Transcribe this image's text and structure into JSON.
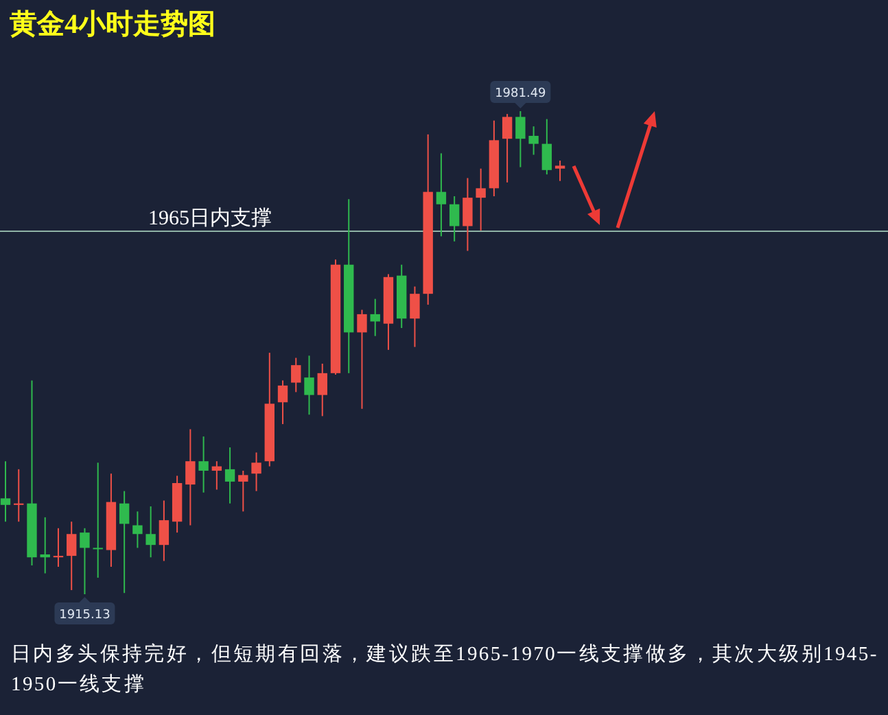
{
  "chart_data": {
    "type": "candlestick",
    "title": "黄金4小时走势图",
    "categories": [
      null,
      null,
      null,
      null,
      null,
      null,
      null,
      null,
      null,
      null,
      null,
      null,
      null,
      null,
      null,
      null,
      null,
      null,
      null,
      null,
      null,
      null,
      null,
      null,
      null,
      null,
      null,
      null,
      null,
      null,
      null,
      null,
      null,
      null,
      null,
      null,
      null,
      null,
      null,
      null,
      null,
      null,
      null
    ],
    "ohlc": [
      [
        1928.3,
        1933.4,
        1925.1,
        1927.4
      ],
      [
        1927.4,
        1932.3,
        1925.1,
        1927.6
      ],
      [
        1927.6,
        1944.5,
        1919.1,
        1920.2
      ],
      [
        1920.6,
        1925.7,
        1918.0,
        1920.2
      ],
      [
        1920.2,
        1924.2,
        1918.9,
        1920.4
      ],
      [
        1920.4,
        1925.1,
        1915.7,
        1923.4
      ],
      [
        1923.6,
        1924.2,
        1915.13,
        1921.5
      ],
      [
        1921.5,
        1933.2,
        1917.4,
        1921.4
      ],
      [
        1921.2,
        1931.7,
        1918.9,
        1927.8
      ],
      [
        1927.6,
        1929.3,
        1915.3,
        1924.8
      ],
      [
        1924.6,
        1926.5,
        1921.5,
        1923.4
      ],
      [
        1923.4,
        1927.2,
        1920.2,
        1921.9
      ],
      [
        1921.9,
        1928.0,
        1919.7,
        1925.3
      ],
      [
        1925.1,
        1931.4,
        1923.6,
        1930.4
      ],
      [
        1930.2,
        1937.8,
        1924.6,
        1933.4
      ],
      [
        1933.4,
        1936.8,
        1929.1,
        1932.1
      ],
      [
        1932.1,
        1933.4,
        1929.5,
        1932.7
      ],
      [
        1932.3,
        1935.3,
        1927.6,
        1930.6
      ],
      [
        1930.6,
        1932.1,
        1926.5,
        1931.5
      ],
      [
        1931.7,
        1934.6,
        1929.3,
        1933.2
      ],
      [
        1933.4,
        1948.3,
        1932.7,
        1941.3
      ],
      [
        1941.5,
        1944.5,
        1938.5,
        1943.8
      ],
      [
        1944.2,
        1947.6,
        1942.9,
        1946.6
      ],
      [
        1944.9,
        1947.9,
        1939.8,
        1942.5
      ],
      [
        1942.5,
        1946.8,
        1939.6,
        1945.5
      ],
      [
        1945.5,
        1961.1,
        1945.3,
        1960.4
      ],
      [
        1960.4,
        1969.4,
        1945.5,
        1951.1
      ],
      [
        1951.1,
        1954.2,
        1940.6,
        1953.6
      ],
      [
        1953.6,
        1955.7,
        1950.6,
        1952.6
      ],
      [
        1952.3,
        1959.1,
        1948.7,
        1958.7
      ],
      [
        1958.9,
        1960.4,
        1951.7,
        1953.0
      ],
      [
        1953.0,
        1957.4,
        1949.1,
        1956.4
      ],
      [
        1956.4,
        1978.3,
        1954.9,
        1970.4
      ],
      [
        1970.4,
        1975.7,
        1964.3,
        1968.7
      ],
      [
        1968.7,
        1969.8,
        1963.6,
        1965.7
      ],
      [
        1965.7,
        1972.3,
        1962.3,
        1969.6
      ],
      [
        1969.6,
        1973.6,
        1965.1,
        1970.9
      ],
      [
        1970.9,
        1980.2,
        1969.8,
        1977.5
      ],
      [
        1977.7,
        1981.1,
        1971.7,
        1980.7
      ],
      [
        1980.7,
        1981.49,
        1973.8,
        1977.7
      ],
      [
        1978.1,
        1979.4,
        1975.5,
        1977.0
      ],
      [
        1977.0,
        1980.4,
        1972.8,
        1973.4
      ],
      [
        1973.6,
        1974.7,
        1971.9,
        1974.0
      ]
    ],
    "colors": [
      "#2fba4e",
      "#ef5047",
      "#2fba4e",
      "#2fba4e",
      "#ef5047",
      "#ef5047",
      "#2fba4e",
      "#2fba4e",
      "#ef5047",
      "#2fba4e",
      "#2fba4e",
      "#2fba4e",
      "#ef5047",
      "#ef5047",
      "#ef5047",
      "#2fba4e",
      "#ef5047",
      "#2fba4e",
      "#ef5047",
      "#ef5047",
      "#ef5047",
      "#ef5047",
      "#ef5047",
      "#2fba4e",
      "#ef5047",
      "#ef5047",
      "#2fba4e",
      "#ef5047",
      "#2fba4e",
      "#ef5047",
      "#2fba4e",
      "#ef5047",
      "#ef5047",
      "#2fba4e",
      "#2fba4e",
      "#ef5047",
      "#ef5047",
      "#ef5047",
      "#ef5047",
      "#2fba4e",
      "#2fba4e",
      "#2fba4e",
      "#ef5047"
    ],
    "ref_lines": [
      {
        "axis": "y",
        "value": 1965,
        "label": "1965日内支撑",
        "color": "#8fb3a6"
      }
    ],
    "annotations": [
      {
        "text": "1981.49",
        "y": 1981.49
      },
      {
        "text": "1915.13",
        "y": 1915.13
      },
      "日内多头保持完好，但短期有回落，建议跌至1965-1970一线支撑做多，其次大级别1945-1950一线支撑"
    ]
  }
}
